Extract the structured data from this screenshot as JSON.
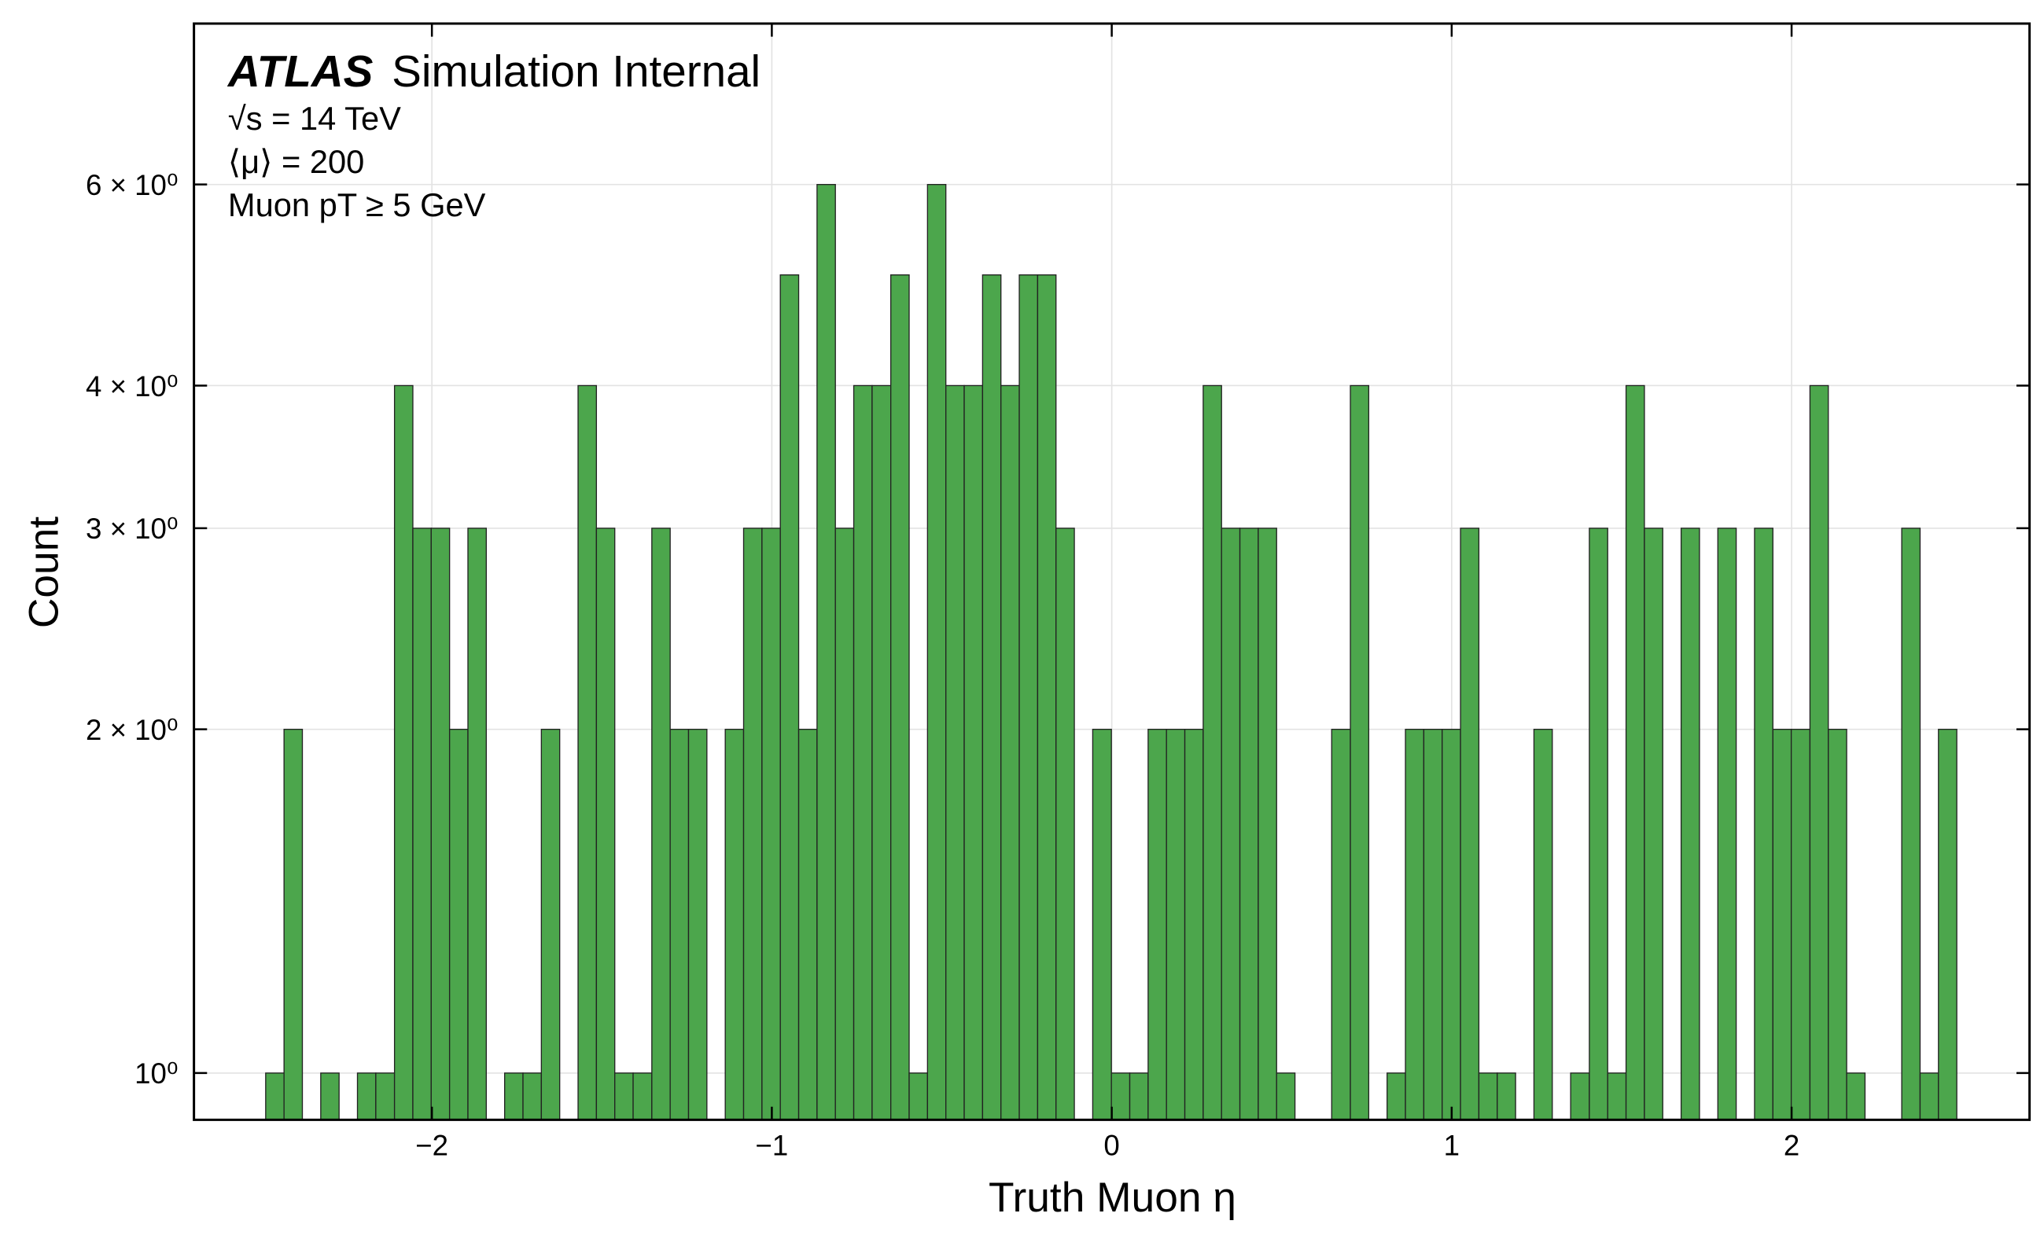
{
  "chart_data": {
    "type": "histogram",
    "annotations": [
      "ATLAS",
      "Simulation Internal",
      "√s = 14 TeV",
      "⟨μ⟩ = 200",
      "Muon pT ≥ 5 GeV"
    ],
    "x_label": "Truth Muon η",
    "y_label": "Count",
    "color": "#4ca64c",
    "edge_color": "#222222",
    "log_y": true,
    "grid": true,
    "xlim": [
      -2.7,
      2.7
    ],
    "ylim": [
      0.91,
      8.3
    ],
    "xticks": [
      {
        "value": -2,
        "label": "−2"
      },
      {
        "value": -1,
        "label": "−1"
      },
      0,
      1,
      2
    ],
    "yticks": [
      {
        "value": 1,
        "label": "10⁰"
      },
      {
        "value": 2,
        "label": "2 × 10⁰"
      },
      {
        "value": 3,
        "label": "3 × 10⁰"
      },
      {
        "value": 4,
        "label": "4 × 10⁰"
      },
      {
        "value": 6,
        "label": "6 × 10⁰"
      }
    ],
    "bins": [
      -2.489,
      -2.435,
      -2.381,
      -2.327,
      -2.273,
      -2.219,
      -2.165,
      -2.11,
      -2.056,
      -2.002,
      -1.948,
      -1.894,
      -1.84,
      -1.786,
      -1.732,
      -1.678,
      -1.624,
      -1.57,
      -1.516,
      -1.462,
      -1.408,
      -1.353,
      -1.299,
      -1.245,
      -1.191,
      -1.137,
      -1.083,
      -1.029,
      -0.975,
      -0.921,
      -0.867,
      -0.813,
      -0.759,
      -0.705,
      -0.65,
      -0.596,
      -0.542,
      -0.488,
      -0.434,
      -0.38,
      -0.326,
      -0.272,
      -0.218,
      -0.164,
      -0.11,
      -0.056,
      -0.001,
      0.053,
      0.107,
      0.161,
      0.215,
      0.269,
      0.323,
      0.377,
      0.431,
      0.485,
      0.539,
      0.593,
      0.647,
      0.702,
      0.756,
      0.81,
      0.864,
      0.918,
      0.972,
      1.026,
      1.08,
      1.134,
      1.188,
      1.242,
      1.296,
      1.35,
      1.405,
      1.459,
      1.513,
      1.567,
      1.621,
      1.675,
      1.729,
      1.783,
      1.837,
      1.891,
      1.945,
      1.999,
      2.054,
      2.108,
      2.162,
      2.216,
      2.27,
      2.324,
      2.378,
      2.432,
      2.486
    ],
    "values": [
      1,
      2,
      0,
      1,
      0,
      1,
      1,
      4,
      3,
      3,
      2,
      3,
      0,
      1,
      1,
      2,
      0,
      4,
      3,
      1,
      1,
      3,
      2,
      2,
      0,
      2,
      3,
      3,
      5,
      2,
      6,
      3,
      4,
      4,
      5,
      1,
      6,
      4,
      4,
      5,
      4,
      5,
      5,
      3,
      0,
      2,
      1,
      1,
      2,
      2,
      2,
      4,
      3,
      3,
      3,
      1,
      0,
      0,
      2,
      4,
      0,
      1,
      2,
      2,
      2,
      3,
      1,
      1,
      0,
      2,
      0,
      1,
      3,
      1,
      4,
      3,
      0,
      3,
      0,
      3,
      0,
      3,
      2,
      2,
      4,
      2,
      1,
      0,
      0,
      3,
      1,
      2
    ]
  }
}
